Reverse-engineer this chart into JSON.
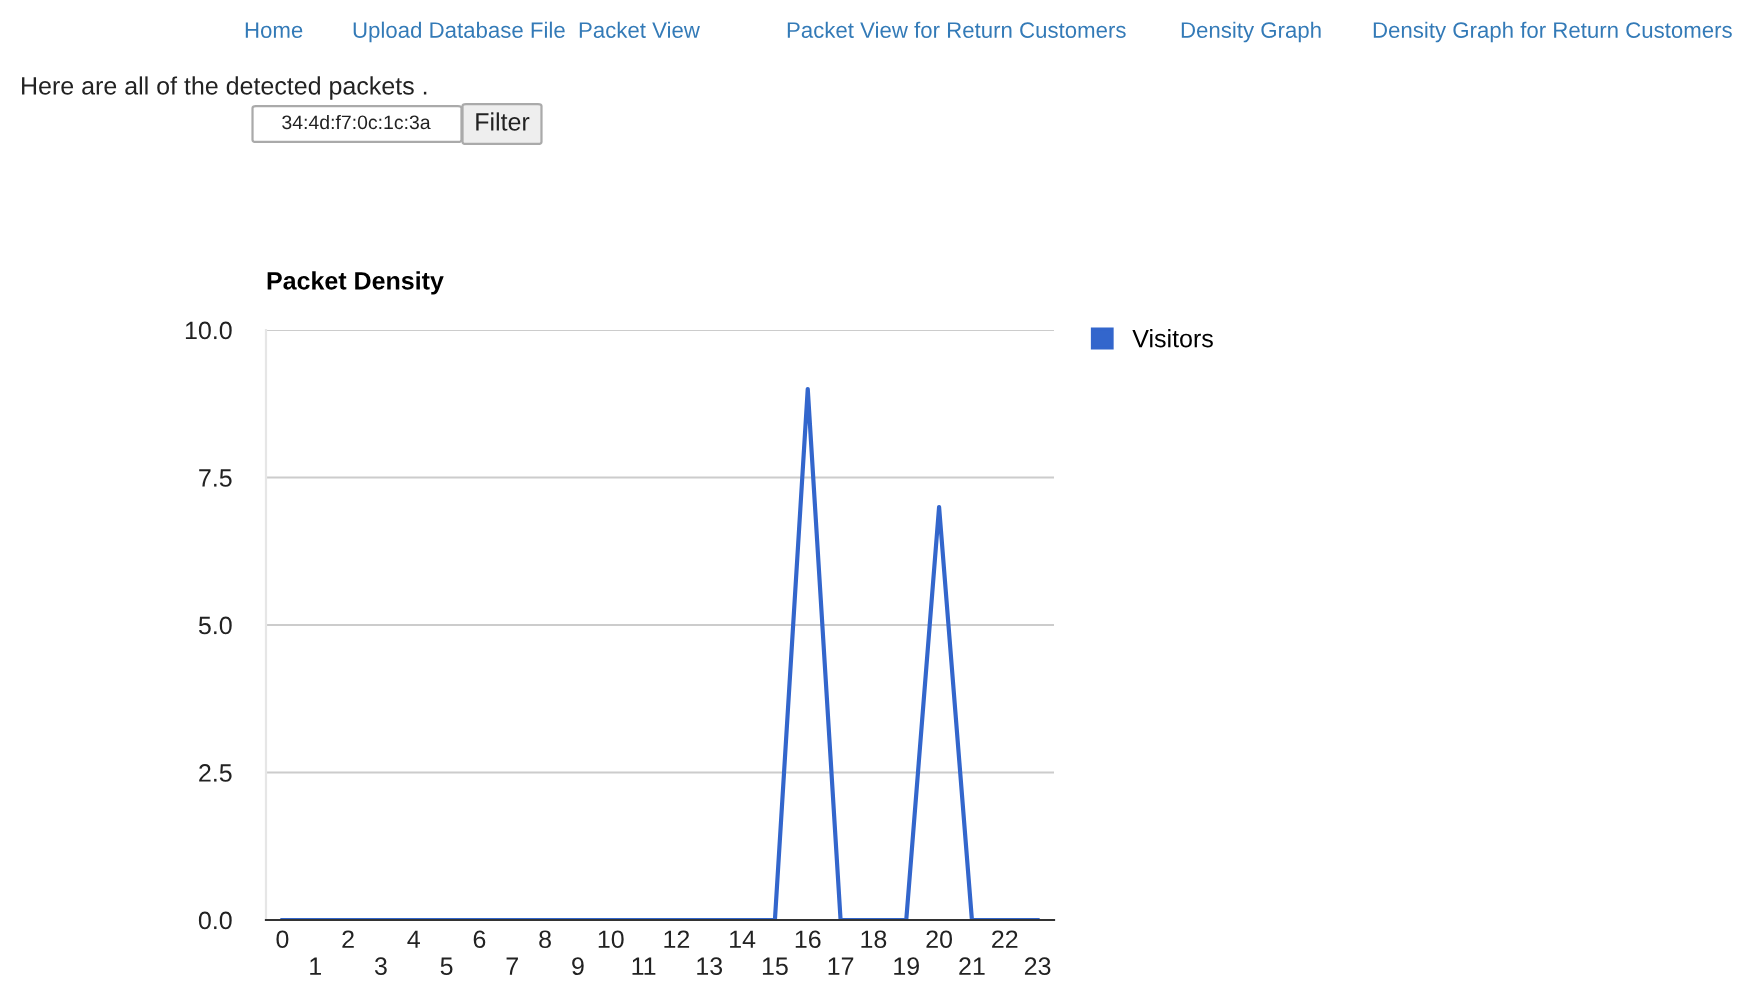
{
  "chart_data": {
    "type": "line",
    "title": "Packet Density",
    "categories": [
      "0",
      "1",
      "2",
      "3",
      "4",
      "5",
      "6",
      "7",
      "8",
      "9",
      "10",
      "11",
      "12",
      "13",
      "14",
      "15",
      "16",
      "17",
      "18",
      "19",
      "20",
      "21",
      "22",
      "23"
    ],
    "series": [
      {
        "name": "Visitors",
        "color": "#3366cc",
        "values": [
          0,
          0,
          0,
          0,
          0,
          0,
          0,
          0,
          0,
          0,
          0,
          0,
          0,
          0,
          0,
          0,
          9,
          0,
          0,
          0,
          7,
          0,
          0,
          0
        ]
      }
    ],
    "ylim": [
      0,
      10
    ],
    "yticks": [
      {
        "value": 0,
        "label": "0.0"
      },
      {
        "value": 2.5,
        "label": "2.5"
      },
      {
        "value": 5,
        "label": "5.0"
      },
      {
        "value": 7.5,
        "label": "7.5"
      },
      {
        "value": 10,
        "label": "10.0"
      }
    ],
    "grid": "y",
    "legend": "top right",
    "marker": "none",
    "line_style": "solid",
    "annotations": [
      "Home",
      "Upload Database File",
      "Packet View",
      "Packet View for Return Customers",
      "Density Graph",
      "Density Graph for Return Customers",
      "Here are all of the detected packets .",
      "34:4d:f7:0c:1c:3a",
      "Filter"
    ]
  }
}
